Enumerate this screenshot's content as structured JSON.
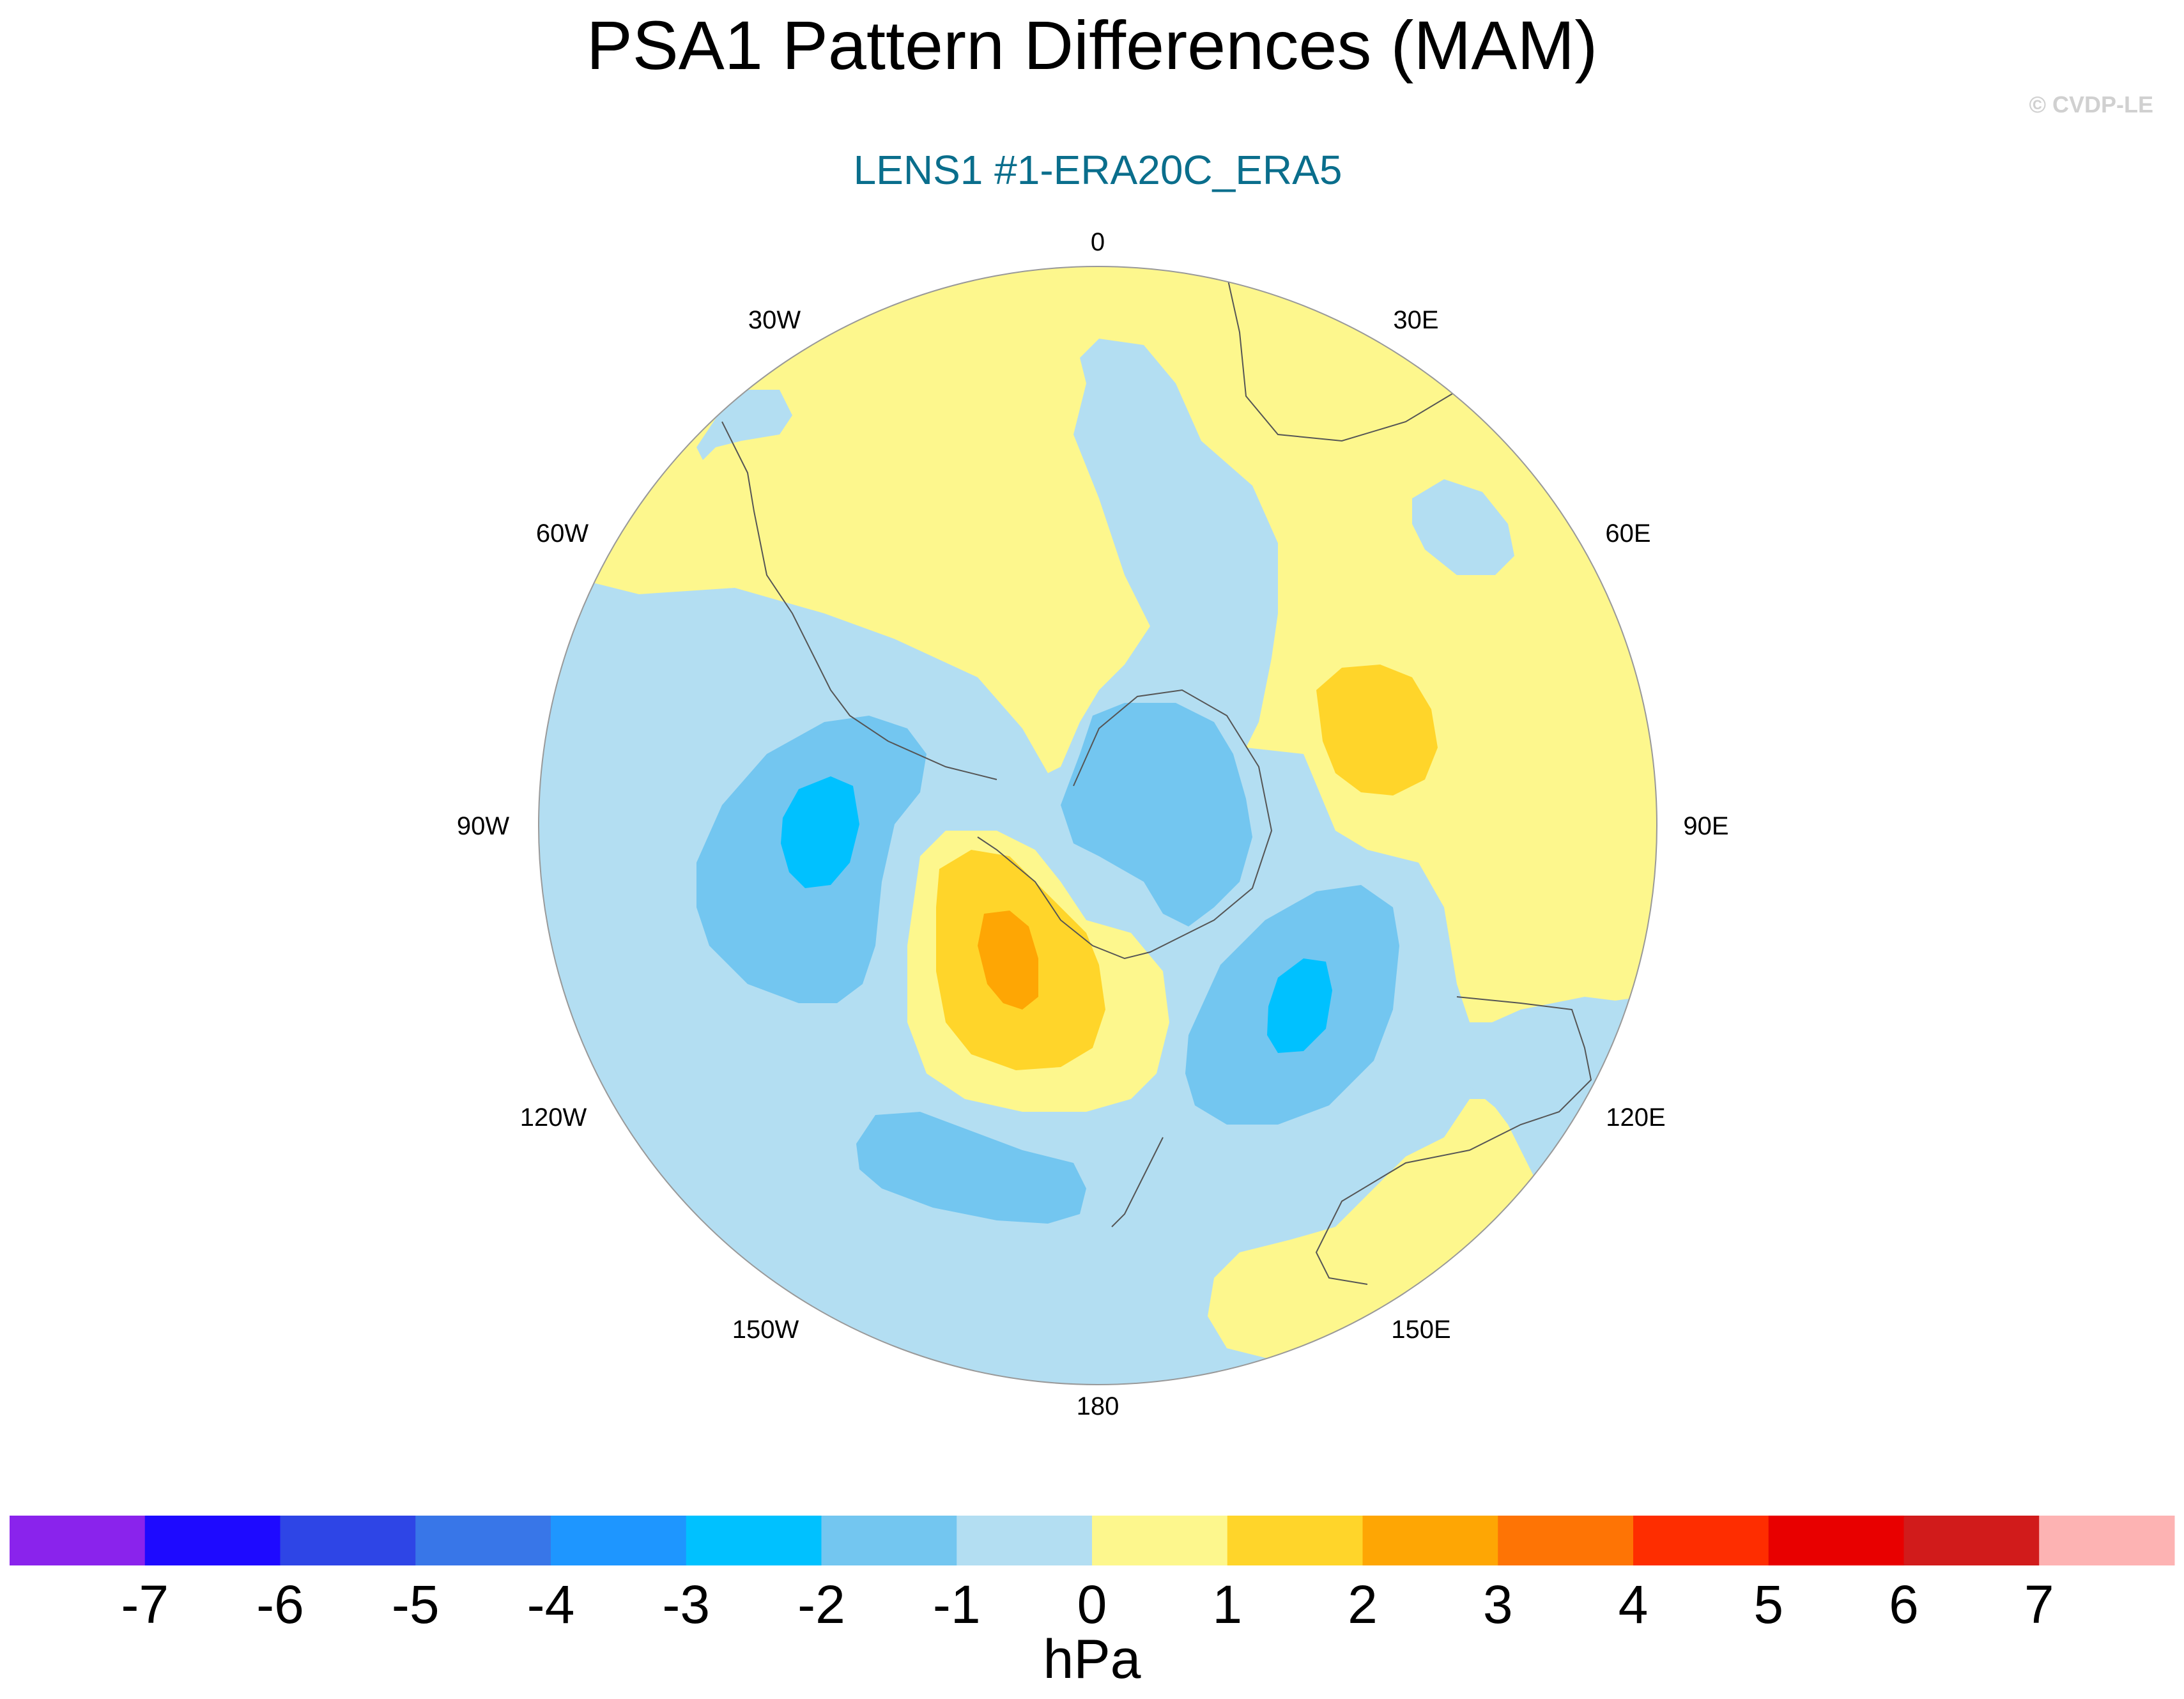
{
  "title": "PSA1 Pattern Differences (MAM)",
  "subtitle": "LENS1 #1-ERA20C_ERA5",
  "watermark": "© CVDP-LE",
  "colors": {
    "title": "#000000",
    "subtitle": "#0a6e8c",
    "watermark": "#d0d0d0",
    "background_field": "#b3def2",
    "coastline": "#555555"
  },
  "longitude_labels": {
    "lon_0": "0",
    "lon_30e": "30E",
    "lon_60e": "60E",
    "lon_90e": "90E",
    "lon_120e": "120E",
    "lon_150e": "150E",
    "lon_180": "180",
    "lon_150w": "150W",
    "lon_120w": "120W",
    "lon_90w": "90W",
    "lon_60w": "60W",
    "lon_30w": "30W"
  },
  "colorbar": {
    "unit": "hPa",
    "ticks": [
      "-7",
      "-6",
      "-5",
      "-4",
      "-3",
      "-2",
      "-1",
      "0",
      "1",
      "2",
      "3",
      "4",
      "5",
      "6",
      "7"
    ],
    "colors": [
      "#8a23ec",
      "#1e0aff",
      "#2e45e6",
      "#3876e8",
      "#1e96ff",
      "#00c1ff",
      "#73c6f0",
      "#b3def2",
      "#fdf78d",
      "#ffd52a",
      "#fea604",
      "#fe7405",
      "#fe2d00",
      "#e80000",
      "#d11b1b",
      "#fdb3b3"
    ]
  }
}
